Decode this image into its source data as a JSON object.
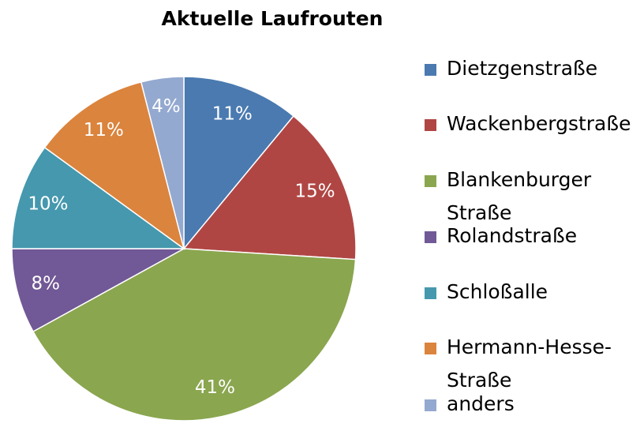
{
  "chart_data": {
    "type": "pie",
    "title": "Aktuelle Laufrouten",
    "categories": [
      "Dietzgenstraße",
      "Wackenbergstraße",
      "Blankenburger Straße",
      "Rolandstraße",
      "Schloßalle",
      "Hermann-Hesse-Straße",
      "anders"
    ],
    "values": [
      11,
      15,
      41,
      8,
      10,
      11,
      4
    ],
    "value_labels": [
      "11%",
      "15%",
      "41%",
      "8%",
      "10%",
      "11%",
      "4%"
    ],
    "colors": [
      "#4a7ab0",
      "#b04644",
      "#8aa64f",
      "#715896",
      "#4598ae",
      "#db843d",
      "#94a9d0"
    ]
  }
}
